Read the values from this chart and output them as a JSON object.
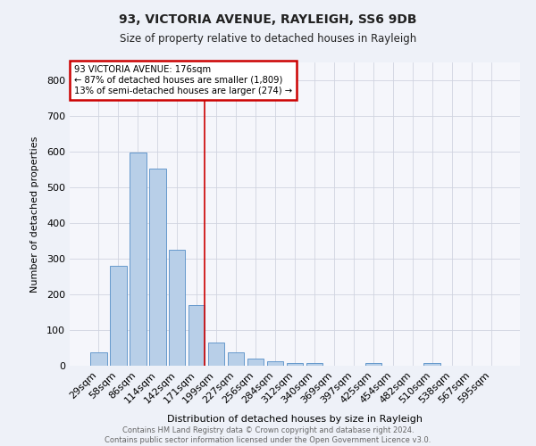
{
  "title1": "93, VICTORIA AVENUE, RAYLEIGH, SS6 9DB",
  "title2": "Size of property relative to detached houses in Rayleigh",
  "xlabel": "Distribution of detached houses by size in Rayleigh",
  "ylabel": "Number of detached properties",
  "bar_labels": [
    "29sqm",
    "58sqm",
    "86sqm",
    "114sqm",
    "142sqm",
    "171sqm",
    "199sqm",
    "227sqm",
    "256sqm",
    "284sqm",
    "312sqm",
    "340sqm",
    "369sqm",
    "397sqm",
    "425sqm",
    "454sqm",
    "482sqm",
    "510sqm",
    "538sqm",
    "567sqm",
    "595sqm"
  ],
  "bar_values": [
    38,
    280,
    598,
    552,
    325,
    170,
    65,
    38,
    20,
    12,
    7,
    7,
    0,
    0,
    8,
    0,
    0,
    7,
    0,
    0,
    0
  ],
  "bar_color": "#b8cfe8",
  "bar_edge_color": "#6699cc",
  "annotation_text_line1": "93 VICTORIA AVENUE: 176sqm",
  "annotation_text_line2": "← 87% of detached houses are smaller (1,809)",
  "annotation_text_line3": "13% of semi-detached houses are larger (274) →",
  "annotation_box_color": "#ffffff",
  "annotation_border_color": "#cc0000",
  "vline_color": "#cc0000",
  "vline_x": 5.42,
  "ylim": [
    0,
    850
  ],
  "yticks": [
    0,
    100,
    200,
    300,
    400,
    500,
    600,
    700,
    800
  ],
  "footer_text": "Contains HM Land Registry data © Crown copyright and database right 2024.\nContains public sector information licensed under the Open Government Licence v3.0.",
  "bg_color": "#eef1f8",
  "plot_bg_color": "#f5f6fb",
  "grid_color": "#d0d4e0"
}
